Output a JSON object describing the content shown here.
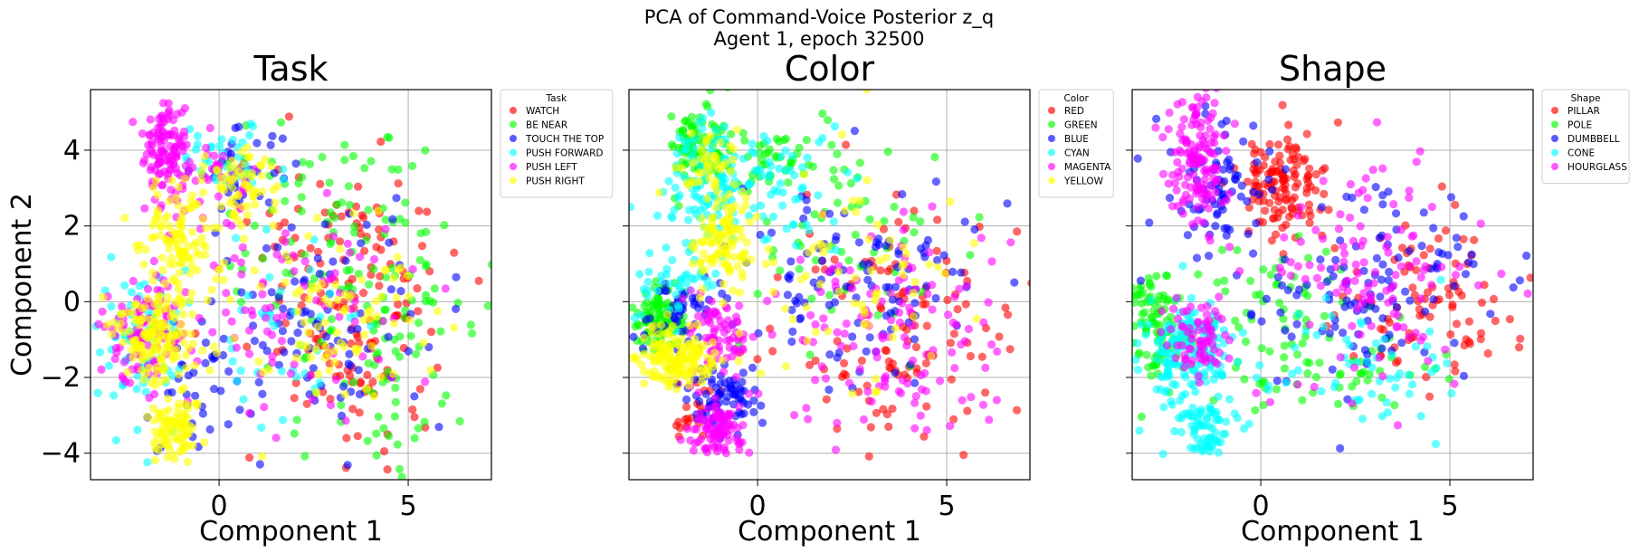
{
  "figure": {
    "suptitle_line1": "PCA of Command-Voice Posterior z_q",
    "suptitle_line2": "Agent 1, epoch 32500"
  },
  "chart_data": [
    {
      "type": "scatter",
      "title": "Task",
      "xlabel": "Component 1",
      "ylabel": "Component 2",
      "xlim": [
        -3.4,
        7.2
      ],
      "ylim": [
        -4.7,
        5.6
      ],
      "xticks": [
        0,
        5
      ],
      "yticks": [
        -4,
        -2,
        0,
        2,
        4
      ],
      "grid": true,
      "legend": {
        "title": "Task",
        "placement": "outside-right"
      },
      "series": [
        {
          "name": "WATCH",
          "color": "#ff0000",
          "clusters": [
            {
              "cx": 3.6,
              "cy": 0.3,
              "sx": 1.4,
              "sy": 1.6,
              "n": 90
            },
            {
              "cx": 4.2,
              "cy": -2.4,
              "sx": 0.9,
              "sy": 1.0,
              "n": 30
            },
            {
              "cx": 2.5,
              "cy": 1.6,
              "sx": 1.2,
              "sy": 1.2,
              "n": 30
            }
          ]
        },
        {
          "name": "BE NEAR",
          "color": "#00ff00",
          "clusters": [
            {
              "cx": 3.9,
              "cy": 0.0,
              "sx": 1.5,
              "sy": 1.7,
              "n": 100
            },
            {
              "cx": 2.5,
              "cy": 2.3,
              "sx": 1.3,
              "sy": 1.1,
              "n": 40
            },
            {
              "cx": 4.6,
              "cy": -2.6,
              "sx": 0.8,
              "sy": 0.9,
              "n": 25
            }
          ]
        },
        {
          "name": "TOUCH THE TOP",
          "color": "#0000ff",
          "clusters": [
            {
              "cx": 2.6,
              "cy": -0.4,
              "sx": 1.7,
              "sy": 1.5,
              "n": 100
            },
            {
              "cx": 0.5,
              "cy": 3.5,
              "sx": 0.6,
              "sy": 0.5,
              "n": 35
            },
            {
              "cx": -0.4,
              "cy": -2.4,
              "sx": 0.7,
              "sy": 0.9,
              "n": 30
            }
          ]
        },
        {
          "name": "PUSH FORWARD",
          "color": "#00ffff",
          "clusters": [
            {
              "cx": -2.2,
              "cy": -1.0,
              "sx": 0.6,
              "sy": 1.1,
              "n": 70
            },
            {
              "cx": 0.2,
              "cy": 3.7,
              "sx": 0.7,
              "sy": 0.5,
              "n": 40
            },
            {
              "cx": 1.8,
              "cy": -1.0,
              "sx": 1.3,
              "sy": 1.4,
              "n": 40
            }
          ]
        },
        {
          "name": "PUSH LEFT",
          "color": "#ff00ff",
          "clusters": [
            {
              "cx": -1.4,
              "cy": 4.1,
              "sx": 0.3,
              "sy": 0.7,
              "n": 110
            },
            {
              "cx": -2.0,
              "cy": -0.8,
              "sx": 0.5,
              "sy": 0.7,
              "n": 90
            },
            {
              "cx": 2.0,
              "cy": 0.0,
              "sx": 1.6,
              "sy": 1.5,
              "n": 90
            },
            {
              "cx": -0.2,
              "cy": 3.1,
              "sx": 0.6,
              "sy": 0.6,
              "n": 40
            }
          ]
        },
        {
          "name": "PUSH RIGHT",
          "color": "#ffff00",
          "clusters": [
            {
              "cx": -1.0,
              "cy": 1.5,
              "sx": 0.55,
              "sy": 0.8,
              "n": 120
            },
            {
              "cx": -1.7,
              "cy": -0.9,
              "sx": 0.6,
              "sy": 0.6,
              "n": 140
            },
            {
              "cx": -1.2,
              "cy": -3.2,
              "sx": 0.35,
              "sy": 0.5,
              "n": 90
            },
            {
              "cx": 0.7,
              "cy": 3.0,
              "sx": 0.4,
              "sy": 0.5,
              "n": 60
            },
            {
              "cx": 3.3,
              "cy": -0.4,
              "sx": 1.5,
              "sy": 1.4,
              "n": 90
            }
          ]
        }
      ]
    },
    {
      "type": "scatter",
      "title": "Color",
      "xlabel": "Component 1",
      "ylabel": "",
      "xlim": [
        -3.4,
        7.2
      ],
      "ylim": [
        -4.7,
        5.6
      ],
      "xticks": [
        0,
        5
      ],
      "yticks": [
        -4,
        -2,
        0,
        2,
        4
      ],
      "grid": true,
      "legend": {
        "title": "Color",
        "placement": "outside-right"
      },
      "series": [
        {
          "name": "RED",
          "color": "#ff0000",
          "clusters": [
            {
              "cx": 3.9,
              "cy": -0.6,
              "sx": 1.5,
              "sy": 1.5,
              "n": 120
            },
            {
              "cx": -1.7,
              "cy": -2.9,
              "sx": 0.3,
              "sy": 0.4,
              "n": 20
            }
          ]
        },
        {
          "name": "GREEN",
          "color": "#00ff00",
          "clusters": [
            {
              "cx": -2.6,
              "cy": -0.4,
              "sx": 0.35,
              "sy": 0.45,
              "n": 110
            },
            {
              "cx": -1.6,
              "cy": 4.2,
              "sx": 0.4,
              "sy": 0.6,
              "n": 80
            },
            {
              "cx": 0.2,
              "cy": 3.8,
              "sx": 0.8,
              "sy": 0.4,
              "n": 50
            },
            {
              "cx": 2.6,
              "cy": 1.6,
              "sx": 1.5,
              "sy": 1.3,
              "n": 60
            }
          ]
        },
        {
          "name": "BLUE",
          "color": "#0000ff",
          "clusters": [
            {
              "cx": -0.9,
              "cy": -2.5,
              "sx": 0.5,
              "sy": 0.5,
              "n": 80
            },
            {
              "cx": 2.7,
              "cy": 0.3,
              "sx": 1.5,
              "sy": 1.3,
              "n": 110
            },
            {
              "cx": -1.9,
              "cy": 0.0,
              "sx": 0.6,
              "sy": 0.6,
              "n": 50
            }
          ]
        },
        {
          "name": "CYAN",
          "color": "#00ffff",
          "clusters": [
            {
              "cx": -1.3,
              "cy": 3.0,
              "sx": 0.6,
              "sy": 0.8,
              "n": 110
            },
            {
              "cx": 0.5,
              "cy": 2.9,
              "sx": 0.8,
              "sy": 0.9,
              "n": 60
            },
            {
              "cx": -2.2,
              "cy": 0.5,
              "sx": 0.5,
              "sy": 0.5,
              "n": 40
            }
          ]
        },
        {
          "name": "MAGENTA",
          "color": "#ff00ff",
          "clusters": [
            {
              "cx": -1.1,
              "cy": -3.4,
              "sx": 0.35,
              "sy": 0.35,
              "n": 90
            },
            {
              "cx": -1.0,
              "cy": -0.9,
              "sx": 0.4,
              "sy": 0.6,
              "n": 70
            },
            {
              "cx": 3.3,
              "cy": -0.9,
              "sx": 1.5,
              "sy": 1.5,
              "n": 130
            }
          ]
        },
        {
          "name": "YELLOW",
          "color": "#ffff00",
          "clusters": [
            {
              "cx": -2.1,
              "cy": -1.5,
              "sx": 0.5,
              "sy": 0.4,
              "n": 150
            },
            {
              "cx": -0.9,
              "cy": 1.6,
              "sx": 0.45,
              "sy": 0.6,
              "n": 110
            },
            {
              "cx": -1.4,
              "cy": 3.5,
              "sx": 0.4,
              "sy": 0.4,
              "n": 40
            },
            {
              "cx": 2.5,
              "cy": 0.5,
              "sx": 1.5,
              "sy": 1.5,
              "n": 70
            }
          ]
        }
      ]
    },
    {
      "type": "scatter",
      "title": "Shape",
      "xlabel": "Component 1",
      "ylabel": "",
      "xlim": [
        -3.4,
        7.2
      ],
      "ylim": [
        -4.7,
        5.6
      ],
      "xticks": [
        0,
        5
      ],
      "yticks": [
        -4,
        -2,
        0,
        2,
        4
      ],
      "grid": true,
      "legend": {
        "title": "Shape",
        "placement": "outside-right"
      },
      "series": [
        {
          "name": "PILLAR",
          "color": "#ff0000",
          "clusters": [
            {
              "cx": 0.6,
              "cy": 3.1,
              "sx": 0.6,
              "sy": 0.7,
              "n": 130
            },
            {
              "cx": 4.3,
              "cy": 0.1,
              "sx": 1.2,
              "sy": 1.1,
              "n": 90
            }
          ]
        },
        {
          "name": "POLE",
          "color": "#00ff00",
          "clusters": [
            {
              "cx": -2.7,
              "cy": -0.7,
              "sx": 0.45,
              "sy": 0.8,
              "n": 100
            },
            {
              "cx": 1.5,
              "cy": -1.7,
              "sx": 1.6,
              "sy": 0.9,
              "n": 70
            },
            {
              "cx": 0.4,
              "cy": 0.4,
              "sx": 1.0,
              "sy": 0.5,
              "n": 30
            }
          ]
        },
        {
          "name": "DUMBBELL",
          "color": "#0000ff",
          "clusters": [
            {
              "cx": -1.2,
              "cy": 2.9,
              "sx": 0.7,
              "sy": 1.1,
              "n": 80
            },
            {
              "cx": 3.0,
              "cy": 0.4,
              "sx": 1.6,
              "sy": 1.3,
              "n": 120
            }
          ]
        },
        {
          "name": "CONE",
          "color": "#00ffff",
          "clusters": [
            {
              "cx": -1.9,
              "cy": -1.4,
              "sx": 0.6,
              "sy": 0.7,
              "n": 170
            },
            {
              "cx": -1.5,
              "cy": -3.4,
              "sx": 0.4,
              "sy": 0.4,
              "n": 70
            },
            {
              "cx": 2.8,
              "cy": -1.6,
              "sx": 1.5,
              "sy": 0.9,
              "n": 60
            }
          ]
        },
        {
          "name": "HOURGLASS",
          "color": "#ff00ff",
          "clusters": [
            {
              "cx": -1.7,
              "cy": 3.8,
              "sx": 0.4,
              "sy": 0.9,
              "n": 140
            },
            {
              "cx": -1.7,
              "cy": -0.9,
              "sx": 0.4,
              "sy": 0.5,
              "n": 70
            },
            {
              "cx": 2.6,
              "cy": 0.9,
              "sx": 1.6,
              "sy": 1.5,
              "n": 120
            }
          ]
        }
      ]
    }
  ]
}
